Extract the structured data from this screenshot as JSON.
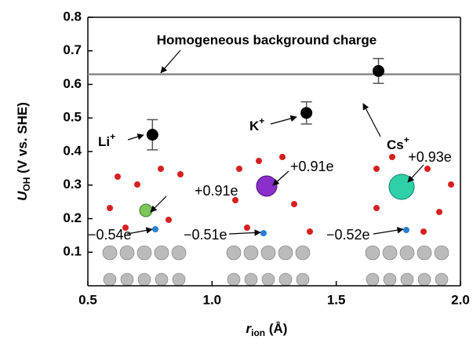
{
  "chart_data": {
    "type": "scatter",
    "x_label": {
      "main": "r",
      "sub": "ion",
      "rest": " (Å)"
    },
    "y_label": {
      "main": "U",
      "sub": "OH",
      "rest": " (V vs. SHE)"
    },
    "x": [
      0.76,
      1.38,
      1.67
    ],
    "series": [
      {
        "color": "#000000",
        "values": [
          0.45,
          0.515,
          0.64
        ],
        "errors": [
          0.045,
          0.033,
          0.037
        ]
      }
    ],
    "hline": {
      "value": 0.63,
      "label": "Homogeneous background charge",
      "color": "#888888"
    },
    "ions": [
      {
        "name": "Li",
        "charge": "+"
      },
      {
        "name": "K",
        "charge": "+"
      },
      {
        "name": "Cs",
        "charge": "+"
      }
    ],
    "charge_labels": [
      "+0.91e",
      "−0.54e",
      "−0.51e",
      "+0.91e",
      "+0.93e",
      "−0.52e"
    ],
    "xlim": [
      0.5,
      2.0
    ],
    "xticks": [
      0.5,
      {
        "value": 1.0,
        "label": "1.0"
      },
      1.5,
      {
        "value": 2.0,
        "label": "2.0"
      }
    ],
    "ylim": [
      0,
      0.8
    ],
    "yticks": [
      0.1,
      0.2,
      0.3,
      0.4,
      0.5,
      0.6,
      0.7,
      0.8
    ]
  }
}
